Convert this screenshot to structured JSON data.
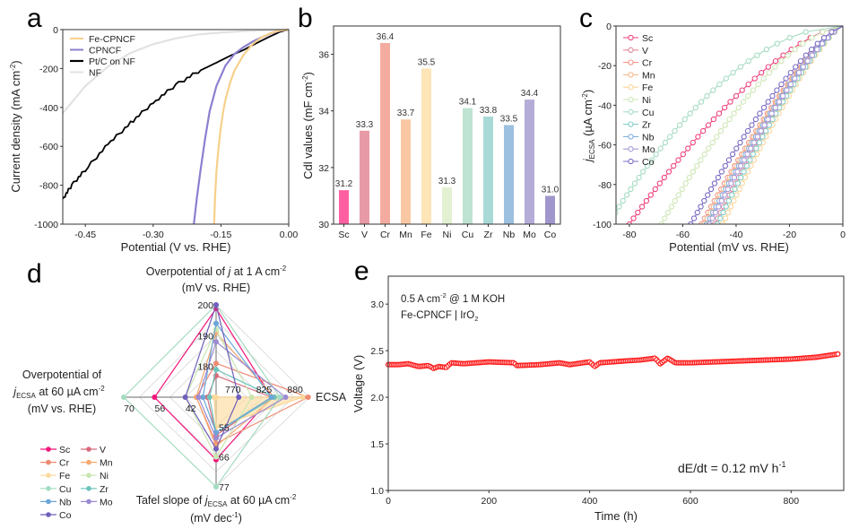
{
  "chart_data": [
    {
      "panel": "a",
      "type": "line",
      "xlabel": "Potential (V vs. RHE)",
      "ylabel": "Current density (mA cm-2)",
      "ylabel_main": "Current density (mA cm",
      "ylabel_sup": "-2",
      "ylabel_close": ")",
      "xlim": [
        -0.5,
        0.0
      ],
      "ylim": [
        -1000,
        0
      ],
      "xticks": [
        -0.45,
        -0.3,
        -0.15,
        0.0
      ],
      "xtick_labels": [
        "-0.45",
        "-0.30",
        "-0.15",
        "0.00"
      ],
      "yticks": [
        0,
        -200,
        -400,
        -600,
        -800,
        -1000
      ],
      "ytick_labels": [
        "0",
        "-200",
        "-400",
        "-600",
        "-800",
        "-1000"
      ],
      "legend_position": "top-left",
      "series": [
        {
          "name": "Fe-CPNCF",
          "color": "#f7d08a",
          "x": [
            0.0,
            -0.02,
            -0.04,
            -0.06,
            -0.08,
            -0.1,
            -0.12,
            -0.13,
            -0.14,
            -0.145,
            -0.15,
            -0.155,
            -0.16,
            -0.163,
            -0.165
          ],
          "y": [
            0,
            -5,
            -18,
            -40,
            -75,
            -130,
            -210,
            -275,
            -360,
            -420,
            -500,
            -600,
            -730,
            -860,
            -1000
          ]
        },
        {
          "name": "CPNCF",
          "color": "#8b7fcf",
          "x": [
            0.0,
            -0.02,
            -0.04,
            -0.06,
            -0.08,
            -0.1,
            -0.12,
            -0.14,
            -0.16,
            -0.175,
            -0.185,
            -0.195,
            -0.203,
            -0.21
          ],
          "y": [
            0,
            -6,
            -20,
            -40,
            -62,
            -90,
            -125,
            -185,
            -290,
            -420,
            -560,
            -720,
            -860,
            -1000
          ]
        },
        {
          "name": "Pt/C on NF",
          "color": "#000000",
          "x": [
            0.0,
            -0.02,
            -0.05,
            -0.08,
            -0.1,
            -0.13,
            -0.16,
            -0.2,
            -0.25,
            -0.3,
            -0.35,
            -0.4,
            -0.45,
            -0.48,
            -0.5
          ],
          "y": [
            0,
            -12,
            -45,
            -80,
            -105,
            -135,
            -170,
            -215,
            -285,
            -375,
            -480,
            -590,
            -720,
            -800,
            -870
          ]
        },
        {
          "name": "NF",
          "color": "#e2e2e2",
          "x": [
            0.0,
            -0.05,
            -0.1,
            -0.15,
            -0.2,
            -0.25,
            -0.3,
            -0.35,
            -0.4,
            -0.45,
            -0.5
          ],
          "y": [
            0,
            -3,
            -8,
            -15,
            -25,
            -45,
            -75,
            -120,
            -190,
            -290,
            -430
          ]
        }
      ]
    },
    {
      "panel": "b",
      "type": "bar",
      "ylabel": "Cdl values (mF cm-2)",
      "ylabel_main": "Cdl values (mF cm",
      "ylabel_sup": "-2",
      "ylabel_close": ")",
      "ylim": [
        30,
        37
      ],
      "yticks": [
        30,
        32,
        34,
        36
      ],
      "ytick_labels": [
        "30",
        "32",
        "34",
        "36"
      ],
      "categories": [
        "Sc",
        "V",
        "Cr",
        "Mn",
        "Fe",
        "Ni",
        "Cu",
        "Zr",
        "Nb",
        "Mo",
        "Co"
      ],
      "values": [
        31.2,
        33.3,
        36.4,
        33.7,
        35.5,
        31.3,
        34.1,
        33.8,
        33.5,
        34.4,
        31.0
      ],
      "value_labels": [
        "31.2",
        "33.3",
        "36.4",
        "33.7",
        "35.5",
        "31.3",
        "34.1",
        "33.8",
        "33.5",
        "34.4",
        "31.0"
      ],
      "colors": [
        "#ff5fa0",
        "#e89aa6",
        "#f4aca0",
        "#f9c8a2",
        "#fde5b8",
        "#e3f0d2",
        "#bfe3d2",
        "#a9d9d6",
        "#9cc0df",
        "#b6acd8",
        "#a196cc"
      ]
    },
    {
      "panel": "c",
      "type": "line",
      "xlabel": "Potential (mV vs. RHE)",
      "ylabel": "jECSA (µA cm-2)",
      "ylabel_j": "j",
      "ylabel_sub": "ECSA",
      "ylabel_main": " (µA cm",
      "ylabel_sup": "-2",
      "ylabel_close": ")",
      "xlim": [
        -85,
        0
      ],
      "ylim": [
        -100,
        0
      ],
      "xticks": [
        -80,
        -60,
        -40,
        -20,
        0
      ],
      "xtick_labels": [
        "-80",
        "-60",
        "-40",
        "-20",
        "0"
      ],
      "yticks": [
        0,
        -20,
        -40,
        -60,
        -80,
        -100
      ],
      "ytick_labels": [
        "0",
        "-20",
        "-40",
        "-60",
        "-80",
        "-100"
      ],
      "legend_position": "top-left",
      "marker": "open-circle",
      "series": [
        {
          "name": "Sc",
          "color": "#f0427f",
          "x_at_100": -80,
          "curvature": 1.5
        },
        {
          "name": "V",
          "color": "#e0879a",
          "x_at_100": -48,
          "curvature": 1.3
        },
        {
          "name": "Cr",
          "color": "#f1968a",
          "x_at_100": -53,
          "curvature": 1.3
        },
        {
          "name": "Mn",
          "color": "#f7b98a",
          "x_at_100": -52,
          "curvature": 1.3
        },
        {
          "name": "Fe",
          "color": "#fbd69a",
          "x_at_100": -45,
          "curvature": 1.3
        },
        {
          "name": "Ni",
          "color": "#cfe7b6",
          "x_at_100": -68,
          "curvature": 1.6
        },
        {
          "name": "Cu",
          "color": "#a6dcc2",
          "x_at_100": -88,
          "curvature": 1.9
        },
        {
          "name": "Zr",
          "color": "#86cdc8",
          "x_at_100": -47,
          "curvature": 1.3
        },
        {
          "name": "Nb",
          "color": "#7fb0dc",
          "x_at_100": -51,
          "curvature": 1.3
        },
        {
          "name": "Mo",
          "color": "#a89ad8",
          "x_at_100": -50,
          "curvature": 1.3
        },
        {
          "name": "Co",
          "color": "#7a6cc4",
          "x_at_100": -57,
          "curvature": 1.35
        }
      ]
    },
    {
      "panel": "d",
      "type": "radar",
      "axes": [
        {
          "name": "Overpotential of j at 1 A cm-2 (mV vs. RHE)",
          "direction": "top",
          "center_value": 170,
          "outer_value": 200,
          "tick_values": [
            180,
            190,
            200
          ],
          "tick_labels": [
            "180",
            "190",
            "200"
          ]
        },
        {
          "name": "ECSA",
          "direction": "right",
          "center_value": 737,
          "outer_value": 902,
          "tick_values": [
            770,
            825,
            880
          ],
          "tick_labels": [
            "770",
            "825",
            "880"
          ]
        },
        {
          "name": "Tafel slope of jECSA at 60 µA cm-2 (mV dec-1)",
          "direction": "bottom",
          "center_value": 44,
          "outer_value": 77,
          "tick_values": [
            55,
            66,
            77
          ],
          "tick_labels": [
            "55",
            "66",
            "77"
          ]
        },
        {
          "name": "Overpotential of jECSA at 60 µA cm-2 (mV vs. RHE)",
          "direction": "left",
          "center_value": 28,
          "outer_value": 70,
          "tick_values": [
            42,
            56,
            70
          ],
          "tick_labels": [
            "42",
            "56",
            "70"
          ]
        }
      ],
      "axis_titles": {
        "top_line1_pre": "Overpotential of ",
        "top_line1_j": "j",
        "top_line1_post": " at 1 A cm",
        "top_line1_sup": "-2",
        "top_line2": "(mV vs. RHE)",
        "right": "ECSA",
        "bottom_line1_pre": "Tafel slope of ",
        "bottom_line1_j": "j",
        "bottom_line1_sub": "ECSA",
        "bottom_line1_post": " at 60 µA cm",
        "bottom_line1_sup": "-2",
        "bottom_line2_pre": "(mV dec",
        "bottom_line2_sup": "-1",
        "bottom_line2_post": ")",
        "left_line1": "Overpotential of",
        "left_line2_j": "j",
        "left_line2_sub": "ECSA",
        "left_line2_post": " at 60 µA cm",
        "left_line2_sup": "-2",
        "left_line3": "(mV vs. RHE)"
      },
      "series": [
        {
          "name": "Sc",
          "color": "#f2157a",
          "values": [
            198.8,
            835,
            67,
            56
          ]
        },
        {
          "name": "V",
          "color": "#d86a7c",
          "values": [
            177,
            835,
            58,
            32
          ]
        },
        {
          "name": "Cr",
          "color": "#ef8a72",
          "values": [
            181,
            900,
            61,
            37
          ]
        },
        {
          "name": "Mn",
          "color": "#f6a86e",
          "values": [
            191,
            840,
            62,
            37
          ]
        },
        {
          "name": "Fe",
          "color": "#fcd89a",
          "values": [
            170,
            890,
            55,
            29
          ]
        },
        {
          "name": "Ni",
          "color": "#c9e6b0",
          "values": [
            192,
            800,
            66,
            42
          ]
        },
        {
          "name": "Cu",
          "color": "#a3dcc0",
          "values": [
            200,
            850,
            77,
            70
          ]
        },
        {
          "name": "Zr",
          "color": "#6cc3bc",
          "values": [
            179,
            840,
            57,
            31
          ]
        },
        {
          "name": "Nb",
          "color": "#6aa6d8",
          "values": [
            194,
            835,
            57,
            34
          ]
        },
        {
          "name": "Mo",
          "color": "#9b8ad2",
          "values": [
            188,
            860,
            59,
            36
          ]
        },
        {
          "name": "Co",
          "color": "#6f5fbc",
          "values": [
            200,
            777,
            63,
            42
          ]
        }
      ],
      "highlight_fill_series": "Fe",
      "legend_position": "bottom-left",
      "legend_columns": 2
    },
    {
      "panel": "e",
      "type": "scatter",
      "xlabel": "Time (h)",
      "ylabel": "Voltage (V)",
      "xlim": [
        0,
        900
      ],
      "ylim": [
        1.0,
        3.3
      ],
      "xticks": [
        0,
        200,
        400,
        600,
        800
      ],
      "xtick_labels": [
        "0",
        "200",
        "400",
        "600",
        "800"
      ],
      "yticks": [
        1.0,
        1.5,
        2.0,
        2.5,
        3.0
      ],
      "ytick_labels": [
        "1.0",
        "1.5",
        "2.0",
        "2.5",
        "3.0"
      ],
      "marker": "open-circle",
      "color": "#ff1a1a",
      "annotation_line1_pre": "0.5 A cm",
      "annotation_line1_sup": "-2",
      "annotation_line1_post": " @ 1 M KOH",
      "annotation_line2_pre": "Fe-CPNCF | IrO",
      "annotation_line2_sub": "2",
      "rate_pre": "dE/dt = 0.12 mV h",
      "rate_sup": "-1",
      "x": [
        0,
        20,
        40,
        60,
        80,
        90,
        100,
        115,
        125,
        150,
        200,
        250,
        255,
        300,
        340,
        360,
        400,
        410,
        420,
        470,
        500,
        530,
        540,
        555,
        570,
        600,
        650,
        700,
        750,
        800,
        850,
        900
      ],
      "y": [
        2.35,
        2.35,
        2.36,
        2.33,
        2.34,
        2.31,
        2.33,
        2.32,
        2.37,
        2.36,
        2.38,
        2.37,
        2.34,
        2.35,
        2.37,
        2.35,
        2.38,
        2.33,
        2.37,
        2.39,
        2.4,
        2.42,
        2.36,
        2.42,
        2.37,
        2.37,
        2.38,
        2.39,
        2.4,
        2.41,
        2.43,
        2.47
      ]
    }
  ],
  "panel_letters": [
    "a",
    "b",
    "c",
    "d",
    "e"
  ]
}
